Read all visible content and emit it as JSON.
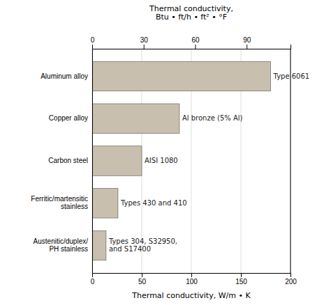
{
  "chart_data": {
    "type": "bar",
    "orientation": "horizontal",
    "categories": [
      "Aluminum alloy",
      "Copper alloy",
      "Carbon steel",
      "Ferritic/martensitic\nstainless",
      "Austenitic/duplex/\nPH stainless"
    ],
    "values": [
      180,
      88,
      50,
      26,
      14
    ],
    "annotations": [
      "Type 6061",
      "Al bronze (5% Al)",
      "AISI 1080",
      "Types 430 and 410",
      "Types 304, S32950,\nand S17400"
    ],
    "color": "#c8bfaf",
    "xlabel": "Thermal conductivity, W/m • K",
    "xlim": [
      0,
      200
    ],
    "xticks": [
      0,
      50,
      100,
      150,
      200
    ],
    "x2label": "Thermal conductivity,\nBtu • ft/h • ft² • °F",
    "x2lim": [
      0,
      115.558
    ],
    "x2ticks": [
      0,
      30,
      60,
      90
    ],
    "grid": true
  }
}
